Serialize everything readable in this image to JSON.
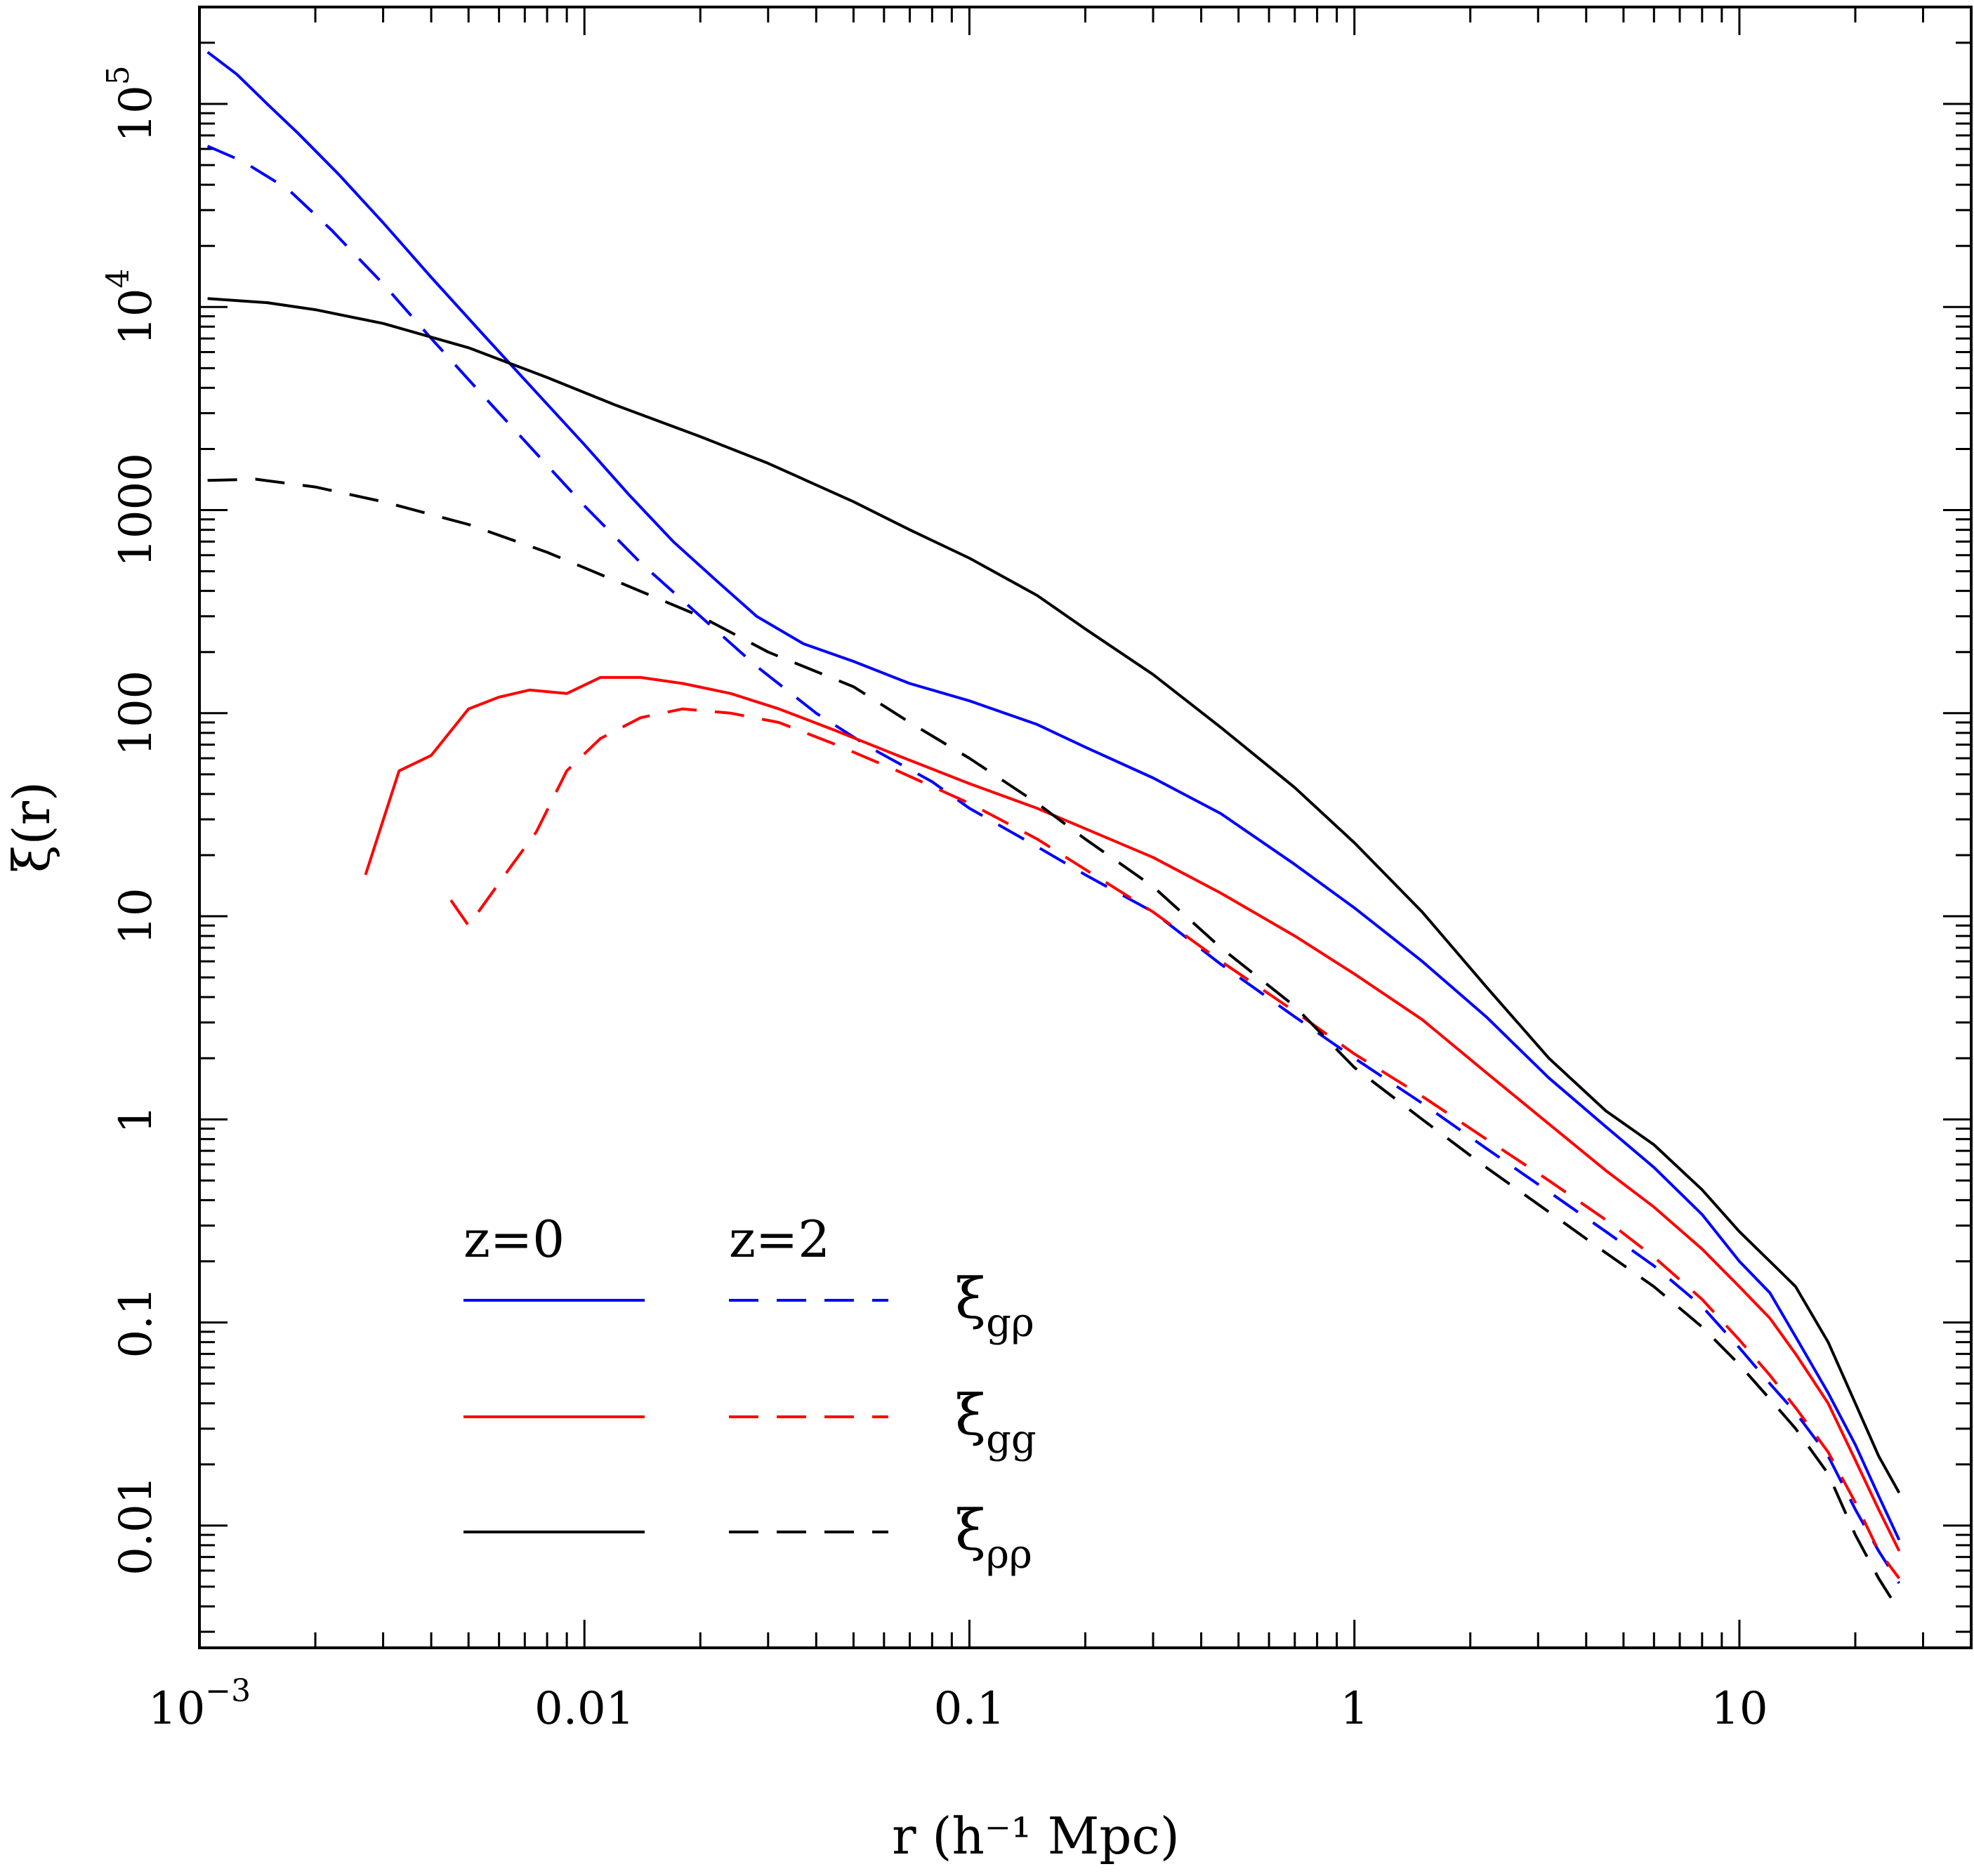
{
  "chart_data": {
    "type": "line",
    "xscale": "log",
    "yscale": "log",
    "xlabel": "r (h⁻¹ Mpc)",
    "ylabel": "ξ(r)",
    "xlim": [
      0.001,
      40
    ],
    "ylim": [
      0.0025,
      300000
    ],
    "x_tick_labels": [
      {
        "value": 0.001,
        "label": "10",
        "exp": "−3"
      },
      {
        "value": 0.01,
        "label": "0.01",
        "exp": ""
      },
      {
        "value": 0.1,
        "label": "0.1",
        "exp": ""
      },
      {
        "value": 1,
        "label": "1",
        "exp": ""
      },
      {
        "value": 10,
        "label": "10",
        "exp": ""
      }
    ],
    "y_tick_labels": [
      {
        "value": 0.01,
        "label": "0.01",
        "exp": ""
      },
      {
        "value": 0.1,
        "label": "0.1",
        "exp": ""
      },
      {
        "value": 1,
        "label": "1",
        "exp": ""
      },
      {
        "value": 10,
        "label": "10",
        "exp": ""
      },
      {
        "value": 100,
        "label": "100",
        "exp": ""
      },
      {
        "value": 1000,
        "label": "1000",
        "exp": ""
      },
      {
        "value": 10000,
        "label": "10",
        "exp": "4"
      },
      {
        "value": 100000,
        "label": "10",
        "exp": "5"
      }
    ],
    "legend": {
      "headers": [
        "z=0",
        "z=2"
      ],
      "rows": [
        {
          "symbol": "ξ",
          "subscript": "gρ",
          "color": "#0000ff"
        },
        {
          "symbol": "ξ",
          "subscript": "gg",
          "color": "#ff0000"
        },
        {
          "symbol": "ξ",
          "subscript": "ρρ",
          "color": "#000000"
        }
      ]
    },
    "series": [
      {
        "name": "xi_grho z=0",
        "color": "#0000ff",
        "dash": "solid",
        "points": [
          [
            0.00105,
            180000
          ],
          [
            0.00125,
            140000
          ],
          [
            0.0015,
            100000
          ],
          [
            0.0018,
            72000
          ],
          [
            0.0023,
            45000
          ],
          [
            0.003,
            26000
          ],
          [
            0.004,
            14000
          ],
          [
            0.0055,
            7200
          ],
          [
            0.0075,
            3800
          ],
          [
            0.01,
            2100
          ],
          [
            0.013,
            1200
          ],
          [
            0.017,
            700
          ],
          [
            0.022,
            450
          ],
          [
            0.028,
            300
          ],
          [
            0.037,
            220
          ],
          [
            0.05,
            180
          ],
          [
            0.07,
            140
          ],
          [
            0.1,
            115
          ],
          [
            0.15,
            88
          ],
          [
            0.2,
            68
          ],
          [
            0.3,
            48
          ],
          [
            0.45,
            32
          ],
          [
            0.7,
            18
          ],
          [
            1.0,
            11
          ],
          [
            1.5,
            6
          ],
          [
            2.2,
            3.2
          ],
          [
            3.2,
            1.6
          ],
          [
            4.5,
            0.92
          ],
          [
            6,
            0.58
          ],
          [
            8,
            0.34
          ],
          [
            10,
            0.2
          ],
          [
            12,
            0.14
          ],
          [
            14,
            0.085
          ],
          [
            17,
            0.045
          ],
          [
            20,
            0.025
          ],
          [
            23,
            0.014
          ],
          [
            26,
            0.0085
          ]
        ]
      },
      {
        "name": "xi_grho z=2",
        "color": "#0000ff",
        "dash": "dashed",
        "points": [
          [
            0.00105,
            62000
          ],
          [
            0.0013,
            52000
          ],
          [
            0.0017,
            38000
          ],
          [
            0.0022,
            24000
          ],
          [
            0.003,
            13000
          ],
          [
            0.004,
            7000
          ],
          [
            0.0055,
            3600
          ],
          [
            0.0075,
            1900
          ],
          [
            0.01,
            1050
          ],
          [
            0.014,
            550
          ],
          [
            0.02,
            300
          ],
          [
            0.028,
            170
          ],
          [
            0.04,
            100
          ],
          [
            0.055,
            68
          ],
          [
            0.08,
            46
          ],
          [
            0.1,
            34
          ],
          [
            0.15,
            22
          ],
          [
            0.2,
            16
          ],
          [
            0.3,
            10.5
          ],
          [
            0.45,
            5.8
          ],
          [
            0.7,
            3.2
          ],
          [
            1.0,
            2.0
          ],
          [
            1.5,
            1.2
          ],
          [
            2.2,
            0.72
          ],
          [
            3.2,
            0.44
          ],
          [
            4.5,
            0.28
          ],
          [
            6,
            0.19
          ],
          [
            8,
            0.12
          ],
          [
            10,
            0.075
          ],
          [
            12,
            0.05
          ],
          [
            14,
            0.036
          ],
          [
            17,
            0.022
          ],
          [
            20,
            0.012
          ],
          [
            23,
            0.0075
          ],
          [
            26,
            0.0052
          ]
        ]
      },
      {
        "name": "xi_gg z=0",
        "color": "#ff0000",
        "dash": "solid",
        "points": [
          [
            0.0027,
            16
          ],
          [
            0.0033,
            52
          ],
          [
            0.004,
            62
          ],
          [
            0.005,
            105
          ],
          [
            0.006,
            120
          ],
          [
            0.0072,
            130
          ],
          [
            0.009,
            125
          ],
          [
            0.011,
            150
          ],
          [
            0.014,
            150
          ],
          [
            0.018,
            140
          ],
          [
            0.024,
            125
          ],
          [
            0.032,
            105
          ],
          [
            0.045,
            82
          ],
          [
            0.065,
            62
          ],
          [
            0.1,
            45
          ],
          [
            0.15,
            34
          ],
          [
            0.2,
            27
          ],
          [
            0.3,
            19.5
          ],
          [
            0.45,
            13
          ],
          [
            0.7,
            8
          ],
          [
            1.0,
            5.2
          ],
          [
            1.5,
            3.1
          ],
          [
            2.2,
            1.7
          ],
          [
            3.2,
            0.95
          ],
          [
            4.5,
            0.56
          ],
          [
            6,
            0.37
          ],
          [
            8,
            0.23
          ],
          [
            10,
            0.15
          ],
          [
            12,
            0.105
          ],
          [
            14,
            0.07
          ],
          [
            17,
            0.04
          ],
          [
            20,
            0.021
          ],
          [
            23,
            0.012
          ],
          [
            26,
            0.0075
          ]
        ]
      },
      {
        "name": "xi_gg z=2",
        "color": "#ff0000",
        "dash": "dashed",
        "points": [
          [
            0.0045,
            12
          ],
          [
            0.005,
            9
          ],
          [
            0.0065,
            18
          ],
          [
            0.0075,
            26
          ],
          [
            0.009,
            52
          ],
          [
            0.011,
            75
          ],
          [
            0.014,
            95
          ],
          [
            0.018,
            105
          ],
          [
            0.024,
            100
          ],
          [
            0.032,
            90
          ],
          [
            0.045,
            70
          ],
          [
            0.065,
            52
          ],
          [
            0.1,
            36
          ],
          [
            0.15,
            24
          ],
          [
            0.2,
            17
          ],
          [
            0.3,
            10.5
          ],
          [
            0.45,
            6
          ],
          [
            0.7,
            3.4
          ],
          [
            1.0,
            2.1
          ],
          [
            1.5,
            1.3
          ],
          [
            2.2,
            0.8
          ],
          [
            3.2,
            0.5
          ],
          [
            4.5,
            0.32
          ],
          [
            6,
            0.21
          ],
          [
            8,
            0.13
          ],
          [
            10,
            0.082
          ],
          [
            12,
            0.055
          ],
          [
            14,
            0.038
          ],
          [
            17,
            0.023
          ],
          [
            20,
            0.013
          ],
          [
            23,
            0.0075
          ],
          [
            26,
            0.0055
          ]
        ]
      },
      {
        "name": "xi_rhorho z=0",
        "color": "#000000",
        "dash": "solid",
        "points": [
          [
            0.00105,
            11000
          ],
          [
            0.0015,
            10500
          ],
          [
            0.002,
            9700
          ],
          [
            0.003,
            8300
          ],
          [
            0.005,
            6300
          ],
          [
            0.008,
            4500
          ],
          [
            0.012,
            3300
          ],
          [
            0.02,
            2300
          ],
          [
            0.03,
            1700
          ],
          [
            0.05,
            1100
          ],
          [
            0.07,
            800
          ],
          [
            0.1,
            580
          ],
          [
            0.15,
            380
          ],
          [
            0.2,
            260
          ],
          [
            0.3,
            155
          ],
          [
            0.45,
            85
          ],
          [
            0.7,
            43
          ],
          [
            1.0,
            23
          ],
          [
            1.5,
            10.5
          ],
          [
            2.2,
            4.5
          ],
          [
            3.2,
            2.0
          ],
          [
            4.5,
            1.1
          ],
          [
            6,
            0.75
          ],
          [
            8,
            0.45
          ],
          [
            10,
            0.28
          ],
          [
            12,
            0.2
          ],
          [
            14,
            0.15
          ],
          [
            17,
            0.08
          ],
          [
            20,
            0.04
          ],
          [
            23,
            0.022
          ],
          [
            26,
            0.0145
          ]
        ]
      },
      {
        "name": "xi_rhorho z=2",
        "color": "#000000",
        "dash": "dashed",
        "points": [
          [
            0.00105,
            1400
          ],
          [
            0.0014,
            1420
          ],
          [
            0.002,
            1300
          ],
          [
            0.003,
            1100
          ],
          [
            0.005,
            850
          ],
          [
            0.008,
            620
          ],
          [
            0.012,
            450
          ],
          [
            0.02,
            300
          ],
          [
            0.03,
            200
          ],
          [
            0.05,
            135
          ],
          [
            0.07,
            90
          ],
          [
            0.1,
            60
          ],
          [
            0.15,
            36
          ],
          [
            0.2,
            24
          ],
          [
            0.3,
            14
          ],
          [
            0.45,
            7
          ],
          [
            0.7,
            3.6
          ],
          [
            1.0,
            1.8
          ],
          [
            1.5,
            1.0
          ],
          [
            2.2,
            0.58
          ],
          [
            3.2,
            0.35
          ],
          [
            4.5,
            0.22
          ],
          [
            6,
            0.15
          ],
          [
            8,
            0.095
          ],
          [
            10,
            0.062
          ],
          [
            12,
            0.042
          ],
          [
            14,
            0.03
          ],
          [
            17,
            0.018
          ],
          [
            20,
            0.009
          ],
          [
            23,
            0.0055
          ],
          [
            26,
            0.0038
          ]
        ]
      }
    ]
  }
}
